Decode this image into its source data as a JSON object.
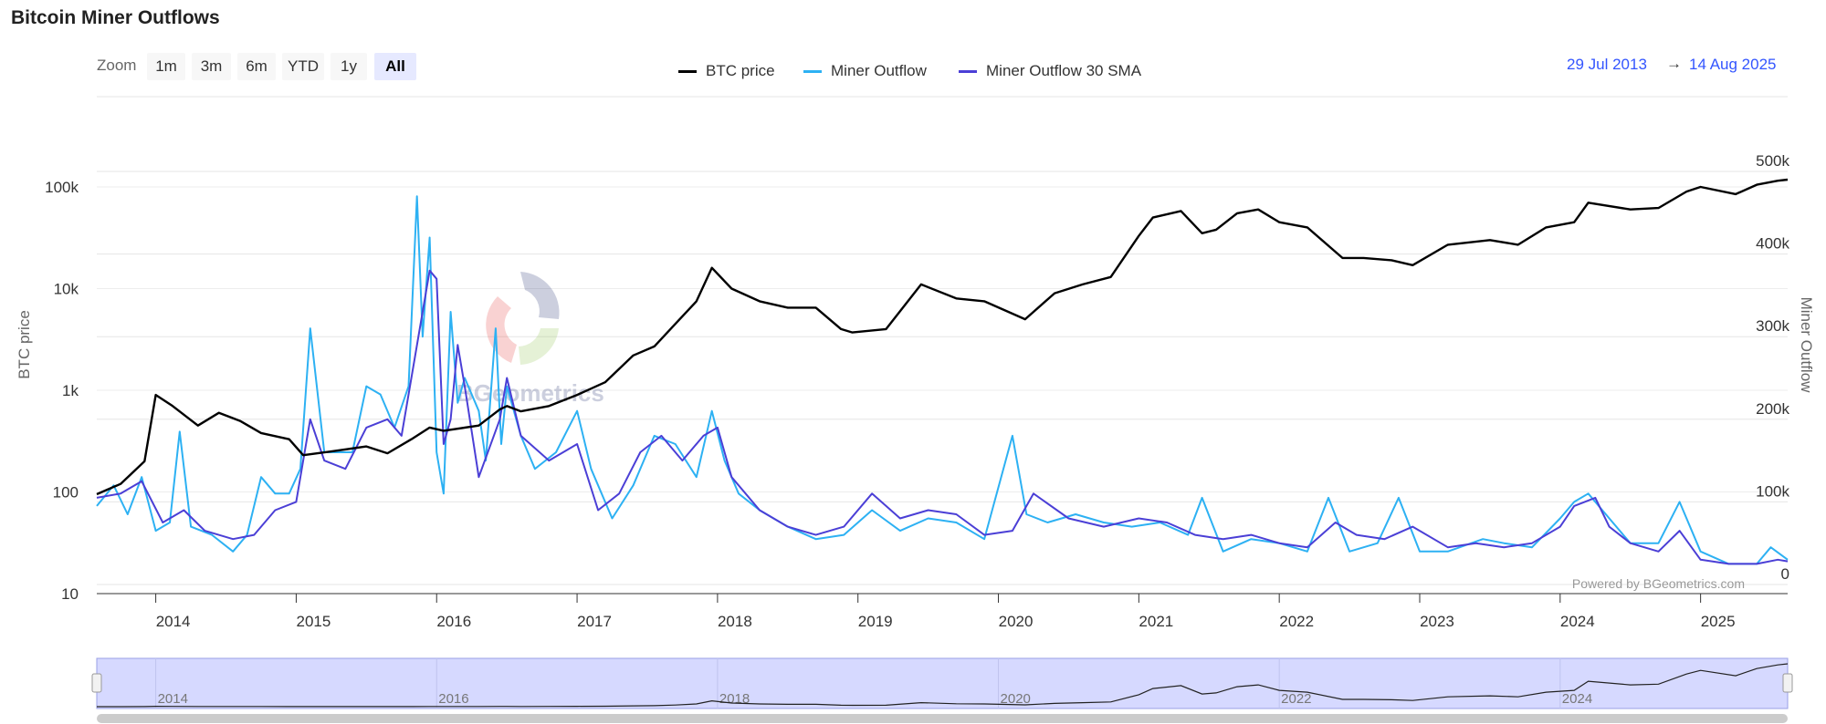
{
  "title": "Bitcoin Miner Outflows",
  "zoom": {
    "label": "Zoom",
    "buttons": [
      "1m",
      "3m",
      "6m",
      "YTD",
      "1y",
      "All"
    ],
    "active": "All"
  },
  "legend": [
    {
      "name": "BTC price",
      "color": "#000000"
    },
    {
      "name": "Miner Outflow",
      "color": "#2db1f3"
    },
    {
      "name": "Miner Outflow 30 SMA",
      "color": "#4b3fd6"
    }
  ],
  "range": {
    "from": "29 Jul 2013",
    "arrow": "→",
    "to": "14 Aug 2025"
  },
  "credit": "Powered by BGeometrics.com",
  "watermark": "BGeometrics",
  "chart_data": {
    "type": "line",
    "xlabel": "",
    "x_range": [
      2013.58,
      2025.62
    ],
    "x_ticks": [
      "2014",
      "2015",
      "2016",
      "2017",
      "2018",
      "2019",
      "2020",
      "2021",
      "2022",
      "2023",
      "2024",
      "2025"
    ],
    "left_axis": {
      "label": "BTC price",
      "scale": "log",
      "range": [
        10,
        100000
      ],
      "ticks": [
        "10",
        "100",
        "1k",
        "10k",
        "100k"
      ]
    },
    "right_axis": {
      "label": "Miner Outflow",
      "scale": "linear",
      "range": [
        0,
        500000
      ],
      "ticks": [
        "0",
        "100k",
        "200k",
        "300k",
        "400k",
        "500k"
      ]
    },
    "grid": true,
    "legend_position": "top-center",
    "series": [
      {
        "name": "BTC price",
        "axis": "left",
        "color": "#000000",
        "x": [
          2013.58,
          2013.75,
          2013.92,
          2014.0,
          2014.12,
          2014.3,
          2014.45,
          2014.6,
          2014.75,
          2014.95,
          2015.05,
          2015.25,
          2015.5,
          2015.65,
          2015.82,
          2015.95,
          2016.05,
          2016.3,
          2016.45,
          2016.5,
          2016.6,
          2016.8,
          2017.0,
          2017.2,
          2017.4,
          2017.55,
          2017.7,
          2017.85,
          2017.96,
          2018.1,
          2018.3,
          2018.5,
          2018.7,
          2018.88,
          2018.96,
          2019.2,
          2019.45,
          2019.7,
          2019.9,
          2020.19,
          2020.4,
          2020.6,
          2020.8,
          2021.0,
          2021.1,
          2021.3,
          2021.45,
          2021.55,
          2021.7,
          2021.85,
          2022.0,
          2022.2,
          2022.45,
          2022.6,
          2022.8,
          2022.95,
          2023.2,
          2023.5,
          2023.7,
          2023.9,
          2024.1,
          2024.2,
          2024.5,
          2024.7,
          2024.9,
          2025.0,
          2025.25,
          2025.4,
          2025.55,
          2025.62
        ],
        "values": [
          95,
          120,
          200,
          900,
          700,
          450,
          600,
          500,
          380,
          330,
          230,
          250,
          280,
          240,
          330,
          430,
          400,
          450,
          650,
          700,
          620,
          700,
          900,
          1200,
          2200,
          2700,
          4500,
          7500,
          16000,
          10000,
          7500,
          6500,
          6500,
          4000,
          3700,
          4000,
          11000,
          8000,
          7500,
          5000,
          9000,
          11000,
          13000,
          33000,
          50000,
          58000,
          35000,
          38000,
          55000,
          60000,
          45000,
          40000,
          20000,
          20000,
          19000,
          17000,
          27000,
          30000,
          27000,
          40000,
          45000,
          70000,
          60000,
          62000,
          90000,
          100000,
          85000,
          105000,
          115000,
          118000
        ]
      },
      {
        "name": "Miner Outflow",
        "axis": "right",
        "color": "#2db1f3",
        "x": [
          2013.58,
          2013.7,
          2013.8,
          2013.9,
          2014.0,
          2014.1,
          2014.17,
          2014.25,
          2014.4,
          2014.55,
          2014.65,
          2014.75,
          2014.85,
          2014.95,
          2015.03,
          2015.1,
          2015.2,
          2015.3,
          2015.4,
          2015.5,
          2015.6,
          2015.7,
          2015.8,
          2015.86,
          2015.9,
          2015.95,
          2016.0,
          2016.05,
          2016.1,
          2016.15,
          2016.2,
          2016.3,
          2016.35,
          2016.42,
          2016.46,
          2016.5,
          2016.6,
          2016.7,
          2016.85,
          2017.0,
          2017.1,
          2017.25,
          2017.4,
          2017.55,
          2017.7,
          2017.85,
          2017.96,
          2018.05,
          2018.15,
          2018.3,
          2018.5,
          2018.7,
          2018.9,
          2019.1,
          2019.3,
          2019.5,
          2019.7,
          2019.9,
          2020.1,
          2020.2,
          2020.35,
          2020.55,
          2020.75,
          2020.95,
          2021.15,
          2021.35,
          2021.45,
          2021.6,
          2021.8,
          2022.0,
          2022.2,
          2022.35,
          2022.5,
          2022.7,
          2022.85,
          2023.0,
          2023.2,
          2023.45,
          2023.6,
          2023.8,
          2024.0,
          2024.1,
          2024.2,
          2024.3,
          2024.5,
          2024.7,
          2024.85,
          2025.0,
          2025.2,
          2025.4,
          2025.5,
          2025.62
        ],
        "values": [
          95000,
          120000,
          85000,
          130000,
          65000,
          75000,
          185000,
          70000,
          60000,
          40000,
          60000,
          130000,
          110000,
          110000,
          140000,
          310000,
          160000,
          160000,
          160000,
          240000,
          230000,
          190000,
          240000,
          470000,
          300000,
          420000,
          160000,
          110000,
          330000,
          220000,
          250000,
          210000,
          150000,
          310000,
          170000,
          240000,
          180000,
          140000,
          160000,
          210000,
          140000,
          80000,
          120000,
          180000,
          170000,
          130000,
          210000,
          150000,
          110000,
          90000,
          70000,
          55000,
          60000,
          90000,
          65000,
          80000,
          75000,
          55000,
          180000,
          85000,
          75000,
          85000,
          75000,
          70000,
          75000,
          60000,
          105000,
          40000,
          55000,
          50000,
          40000,
          105000,
          40000,
          50000,
          105000,
          40000,
          40000,
          55000,
          50000,
          45000,
          80000,
          100000,
          110000,
          90000,
          50000,
          50000,
          100000,
          40000,
          25000,
          25000,
          45000,
          30000
        ]
      },
      {
        "name": "Miner Outflow 30 SMA",
        "axis": "right",
        "color": "#4b3fd6",
        "x": [
          2013.58,
          2013.75,
          2013.9,
          2014.05,
          2014.2,
          2014.35,
          2014.55,
          2014.7,
          2014.85,
          2015.0,
          2015.1,
          2015.2,
          2015.35,
          2015.5,
          2015.65,
          2015.75,
          2015.85,
          2015.95,
          2016.0,
          2016.05,
          2016.1,
          2016.15,
          2016.2,
          2016.3,
          2016.45,
          2016.5,
          2016.6,
          2016.8,
          2017.0,
          2017.15,
          2017.3,
          2017.45,
          2017.6,
          2017.75,
          2017.9,
          2018.0,
          2018.1,
          2018.3,
          2018.5,
          2018.7,
          2018.9,
          2019.1,
          2019.3,
          2019.5,
          2019.7,
          2019.9,
          2020.1,
          2020.25,
          2020.5,
          2020.75,
          2021.0,
          2021.2,
          2021.4,
          2021.6,
          2021.8,
          2022.0,
          2022.2,
          2022.4,
          2022.55,
          2022.75,
          2022.95,
          2023.2,
          2023.4,
          2023.6,
          2023.8,
          2024.0,
          2024.1,
          2024.25,
          2024.35,
          2024.5,
          2024.7,
          2024.85,
          2025.0,
          2025.2,
          2025.4,
          2025.55,
          2025.62
        ],
        "values": [
          105000,
          110000,
          125000,
          75000,
          90000,
          65000,
          55000,
          60000,
          90000,
          100000,
          200000,
          150000,
          140000,
          190000,
          200000,
          180000,
          280000,
          380000,
          370000,
          170000,
          200000,
          290000,
          240000,
          130000,
          200000,
          250000,
          180000,
          150000,
          170000,
          90000,
          110000,
          160000,
          180000,
          150000,
          180000,
          190000,
          130000,
          90000,
          70000,
          60000,
          70000,
          110000,
          80000,
          90000,
          85000,
          60000,
          65000,
          110000,
          80000,
          70000,
          80000,
          75000,
          60000,
          55000,
          60000,
          50000,
          45000,
          75000,
          60000,
          55000,
          70000,
          45000,
          50000,
          45000,
          50000,
          70000,
          95000,
          105000,
          70000,
          50000,
          40000,
          65000,
          30000,
          25000,
          25000,
          30000,
          28000
        ]
      }
    ]
  }
}
